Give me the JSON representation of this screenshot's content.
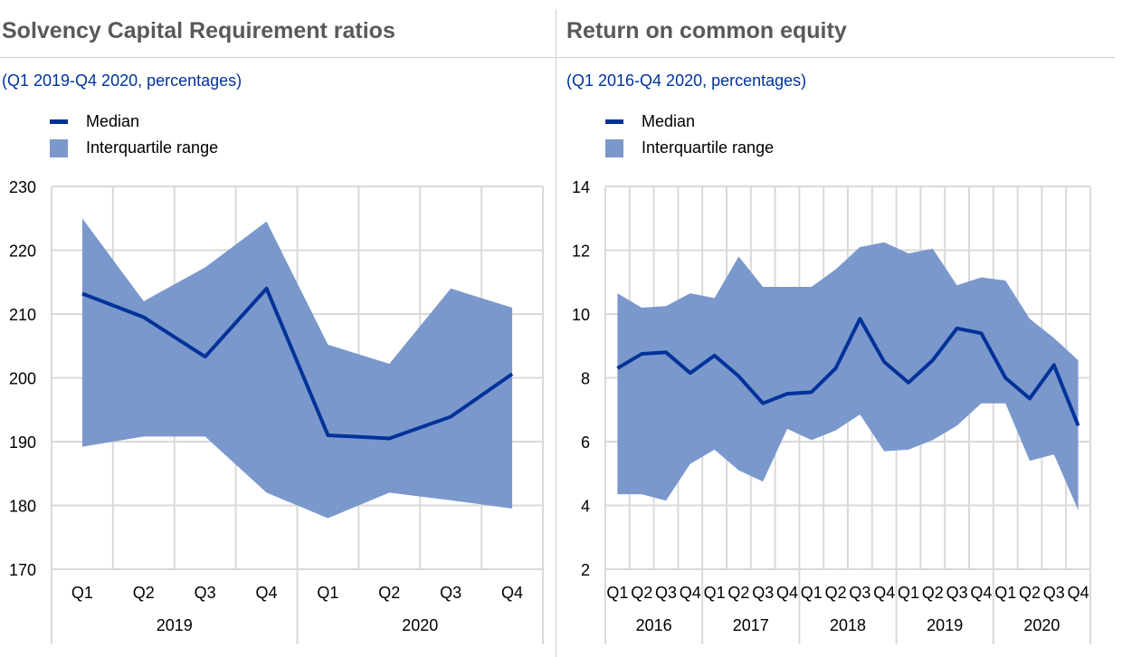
{
  "chart_data": [
    {
      "type": "area",
      "title": "Solvency Capital Requirement ratios",
      "subtitle": "(Q1 2019-Q4 2020, percentages)",
      "x_tick_labels": [
        "Q1",
        "Q2",
        "Q3",
        "Q4",
        "Q1",
        "Q2",
        "Q3",
        "Q4"
      ],
      "x_year_labels": [
        "2019",
        "2020"
      ],
      "ylim": [
        170,
        230
      ],
      "y_ticks": [
        170,
        180,
        190,
        200,
        210,
        220,
        230
      ],
      "grid": true,
      "legend": {
        "position": "top-left",
        "entries": [
          "Median",
          "Interquartile range"
        ]
      },
      "series": [
        {
          "name": "Median",
          "values": [
            213.2,
            209.5,
            203.3,
            214.0,
            191.0,
            190.5,
            193.9,
            200.6
          ]
        },
        {
          "name": "Interquartile range",
          "lower": [
            189.2,
            190.8,
            190.8,
            182.0,
            178.0,
            182.0,
            180.8,
            179.5
          ],
          "upper": [
            225.0,
            212.0,
            217.3,
            224.5,
            205.2,
            202.2,
            214.0,
            211.0
          ]
        }
      ]
    },
    {
      "type": "area",
      "title": "Return on common equity",
      "subtitle": "(Q1 2016-Q4 2020, percentages)",
      "x_tick_labels": [
        "Q1",
        "Q2",
        "Q3",
        "Q4",
        "Q1",
        "Q2",
        "Q3",
        "Q4",
        "Q1",
        "Q2",
        "Q3",
        "Q4",
        "Q1",
        "Q2",
        "Q3",
        "Q4",
        "Q1",
        "Q2",
        "Q3",
        "Q4"
      ],
      "x_year_labels": [
        "2016",
        "2017",
        "2018",
        "2019",
        "2020"
      ],
      "ylim": [
        2,
        14
      ],
      "y_ticks": [
        2,
        4,
        6,
        8,
        10,
        12,
        14
      ],
      "grid": true,
      "legend": {
        "position": "top-left",
        "entries": [
          "Median",
          "Interquartile range"
        ]
      },
      "series": [
        {
          "name": "Median",
          "values": [
            8.3,
            8.75,
            8.8,
            8.15,
            8.7,
            8.05,
            7.2,
            7.5,
            7.55,
            8.3,
            9.85,
            8.5,
            7.85,
            8.55,
            9.55,
            9.4,
            8.0,
            7.35,
            8.4,
            6.5
          ]
        },
        {
          "name": "Interquartile range",
          "lower": [
            4.35,
            4.35,
            4.15,
            5.3,
            5.75,
            5.1,
            4.75,
            6.4,
            6.05,
            6.35,
            6.85,
            5.7,
            5.75,
            6.05,
            6.5,
            7.2,
            7.2,
            5.4,
            5.6,
            3.85
          ],
          "upper": [
            10.65,
            10.2,
            10.25,
            10.65,
            10.5,
            11.8,
            10.85,
            10.85,
            10.85,
            11.4,
            12.1,
            12.25,
            11.9,
            12.05,
            10.9,
            11.15,
            11.05,
            9.85,
            9.25,
            8.55
          ]
        }
      ]
    }
  ]
}
